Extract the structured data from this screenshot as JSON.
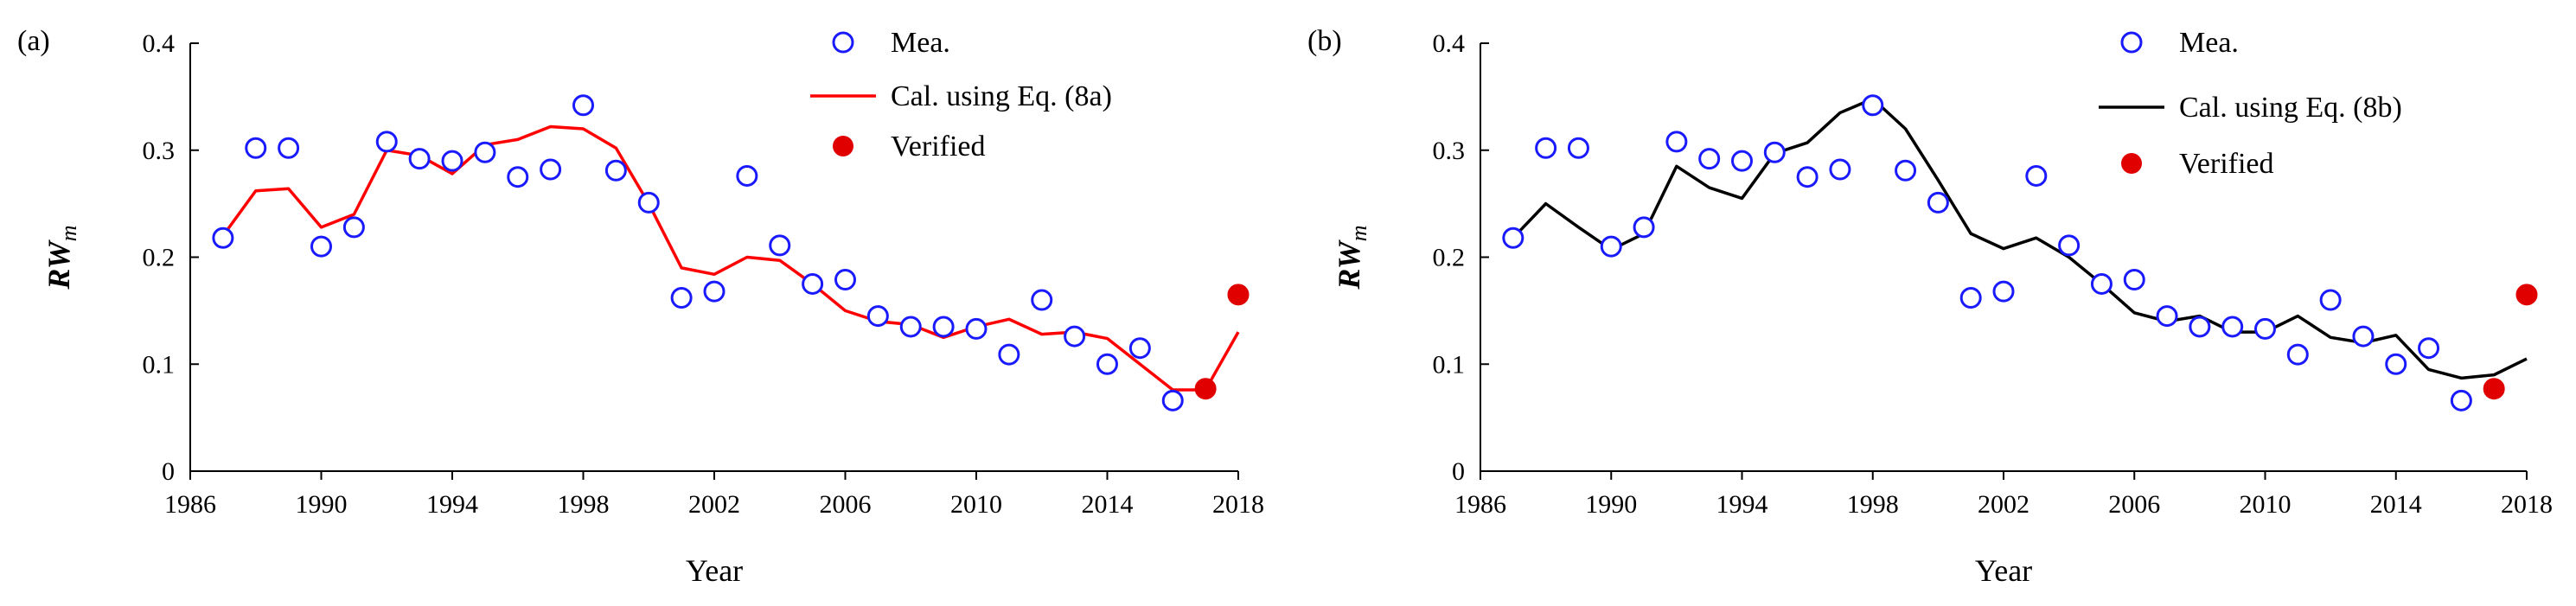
{
  "chart_data": [
    {
      "type": "scatter+line",
      "panel_label": "(a)",
      "xlabel": "Year",
      "ylabel_main": "RW",
      "ylabel_sub": "m",
      "xlim": [
        1986,
        2018
      ],
      "ylim": [
        0,
        0.4
      ],
      "x_ticks": [
        1986,
        1990,
        1994,
        1998,
        2002,
        2006,
        2010,
        2014,
        2018
      ],
      "y_ticks": [
        0,
        0.1,
        0.2,
        0.3,
        0.4
      ],
      "y_tick_labels": [
        "0",
        "0.1",
        "0.2",
        "0.3",
        "0.4"
      ],
      "legend": {
        "measured": "Mea.",
        "calculated": "Cal. using Eq. (8a)",
        "verified": "Verified"
      },
      "colors": {
        "measured": "#1a1aff",
        "calculated": "#ff0000",
        "verified": "#e00000"
      },
      "measured": {
        "x": [
          1987,
          1988,
          1989,
          1990,
          1991,
          1992,
          1993,
          1994,
          1995,
          1996,
          1997,
          1998,
          1999,
          2000,
          2001,
          2002,
          2003,
          2004,
          2005,
          2006,
          2007,
          2008,
          2009,
          2010,
          2011,
          2012,
          2013,
          2014,
          2015,
          2016
        ],
        "y": [
          0.218,
          0.302,
          0.302,
          0.21,
          0.228,
          0.308,
          0.292,
          0.29,
          0.298,
          0.275,
          0.282,
          0.342,
          0.281,
          0.251,
          0.162,
          0.168,
          0.276,
          0.211,
          0.175,
          0.179,
          0.145,
          0.135,
          0.135,
          0.133,
          0.109,
          0.16,
          0.126,
          0.1,
          0.115,
          0.066
        ]
      },
      "calculated": {
        "x": [
          1987,
          1988,
          1989,
          1990,
          1991,
          1992,
          1993,
          1994,
          1995,
          1996,
          1997,
          1998,
          1999,
          2000,
          2001,
          2002,
          2003,
          2004,
          2005,
          2006,
          2007,
          2008,
          2009,
          2010,
          2011,
          2012,
          2013,
          2014,
          2015,
          2016,
          2017,
          2018
        ],
        "y": [
          0.22,
          0.262,
          0.264,
          0.228,
          0.24,
          0.3,
          0.295,
          0.278,
          0.305,
          0.31,
          0.322,
          0.32,
          0.302,
          0.25,
          0.19,
          0.184,
          0.2,
          0.197,
          0.175,
          0.15,
          0.14,
          0.137,
          0.125,
          0.135,
          0.142,
          0.128,
          0.13,
          0.124,
          0.1,
          0.076,
          0.076,
          0.13
        ]
      },
      "verified": {
        "x": [
          2017,
          2018
        ],
        "y": [
          0.077,
          0.165
        ]
      }
    },
    {
      "type": "scatter+line",
      "panel_label": "(b)",
      "xlabel": "Year",
      "ylabel_main": "RW",
      "ylabel_sub": "m",
      "xlim": [
        1986,
        2018
      ],
      "ylim": [
        0,
        0.4
      ],
      "x_ticks": [
        1986,
        1990,
        1994,
        1998,
        2002,
        2006,
        2010,
        2014,
        2018
      ],
      "y_ticks": [
        0,
        0.1,
        0.2,
        0.3,
        0.4
      ],
      "y_tick_labels": [
        "0",
        "0.1",
        "0.2",
        "0.3",
        "0.4"
      ],
      "legend": {
        "measured": "Mea.",
        "calculated": "Cal. using Eq. (8b)",
        "verified": "Verified"
      },
      "colors": {
        "measured": "#1a1aff",
        "calculated": "#000000",
        "verified": "#e00000"
      },
      "measured": {
        "x": [
          1987,
          1988,
          1989,
          1990,
          1991,
          1992,
          1993,
          1994,
          1995,
          1996,
          1997,
          1998,
          1999,
          2000,
          2001,
          2002,
          2003,
          2004,
          2005,
          2006,
          2007,
          2008,
          2009,
          2010,
          2011,
          2012,
          2013,
          2014,
          2015,
          2016
        ],
        "y": [
          0.218,
          0.302,
          0.302,
          0.21,
          0.228,
          0.308,
          0.292,
          0.29,
          0.298,
          0.275,
          0.282,
          0.342,
          0.281,
          0.251,
          0.162,
          0.168,
          0.276,
          0.211,
          0.175,
          0.179,
          0.145,
          0.135,
          0.135,
          0.133,
          0.109,
          0.16,
          0.126,
          0.1,
          0.115,
          0.066
        ]
      },
      "calculated": {
        "x": [
          1987,
          1988,
          1989,
          1990,
          1991,
          1992,
          1993,
          1994,
          1995,
          1996,
          1997,
          1998,
          1999,
          2000,
          2001,
          2002,
          2003,
          2004,
          2005,
          2006,
          2007,
          2008,
          2009,
          2010,
          2011,
          2012,
          2013,
          2014,
          2015,
          2016,
          2017,
          2018
        ],
        "y": [
          0.218,
          0.25,
          0.228,
          0.207,
          0.222,
          0.285,
          0.265,
          0.255,
          0.297,
          0.307,
          0.335,
          0.348,
          0.32,
          0.272,
          0.222,
          0.208,
          0.218,
          0.2,
          0.175,
          0.148,
          0.14,
          0.145,
          0.13,
          0.13,
          0.145,
          0.125,
          0.12,
          0.127,
          0.095,
          0.087,
          0.09,
          0.105
        ]
      },
      "verified": {
        "x": [
          2017,
          2018
        ],
        "y": [
          0.077,
          0.165
        ]
      }
    }
  ]
}
